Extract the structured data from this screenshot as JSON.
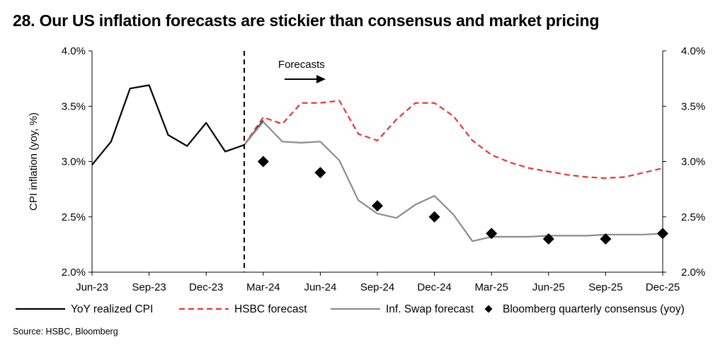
{
  "title": "28. Our US inflation forecasts are stickier than consensus and market pricing",
  "source": "Source: HSBC, Bloomberg",
  "chart_data": {
    "type": "line",
    "ylabel": "CPI inflation  (yoy, %)",
    "ylim": [
      2.0,
      4.0
    ],
    "y_ticks": [
      "2.0%",
      "2.5%",
      "3.0%",
      "3.5%",
      "4.0%"
    ],
    "y2_ticks": [
      "2.0%",
      "2.5%",
      "3.0%",
      "3.5%",
      "4.0%"
    ],
    "x_tick_labels": [
      "Jun-23",
      "Sep-23",
      "Dec-23",
      "Mar-24",
      "Jun-24",
      "Sep-24",
      "Dec-24",
      "Mar-25",
      "Jun-25",
      "Sep-25",
      "Dec-25"
    ],
    "x_start": "Jun-23",
    "x_end": "Dec-25",
    "forecast_start": "Feb-24",
    "annotation": "Forecasts",
    "grid": false,
    "legend_position": "bottom",
    "series": [
      {
        "name": "YoY realized CPI",
        "style": "solid",
        "color": "#000000",
        "x": [
          "Jun-23",
          "Jul-23",
          "Aug-23",
          "Sep-23",
          "Oct-23",
          "Nov-23",
          "Dec-23",
          "Jan-24",
          "Feb-24",
          "Mar-24"
        ],
        "values": [
          2.97,
          3.18,
          3.66,
          3.69,
          3.24,
          3.14,
          3.35,
          3.09,
          3.15,
          3.37
        ]
      },
      {
        "name": "HSBC forecast",
        "style": "dashed",
        "color": "#ee3333",
        "x": [
          "Feb-24",
          "Mar-24",
          "Apr-24",
          "May-24",
          "Jun-24",
          "Jul-24",
          "Aug-24",
          "Sep-24",
          "Oct-24",
          "Nov-24",
          "Dec-24",
          "Jan-25",
          "Feb-25",
          "Mar-25",
          "Apr-25",
          "May-25",
          "Jun-25",
          "Jul-25",
          "Aug-25",
          "Sep-25",
          "Oct-25",
          "Nov-25",
          "Dec-25"
        ],
        "values": [
          3.15,
          3.4,
          3.34,
          3.53,
          3.53,
          3.55,
          3.25,
          3.19,
          3.38,
          3.53,
          3.53,
          3.41,
          3.19,
          3.06,
          2.99,
          2.94,
          2.91,
          2.88,
          2.86,
          2.85,
          2.86,
          2.9,
          2.94
        ]
      },
      {
        "name": "Inf. Swap forecast",
        "style": "solid",
        "color": "#8c8c8c",
        "x": [
          "Feb-24",
          "Mar-24",
          "Apr-24",
          "May-24",
          "Jun-24",
          "Jul-24",
          "Aug-24",
          "Sep-24",
          "Oct-24",
          "Nov-24",
          "Dec-24",
          "Jan-25",
          "Feb-25",
          "Mar-25",
          "Apr-25",
          "May-25",
          "Jun-25",
          "Jul-25",
          "Aug-25",
          "Sep-25",
          "Oct-25",
          "Nov-25",
          "Dec-25"
        ],
        "values": [
          3.15,
          3.36,
          3.18,
          3.17,
          3.18,
          3.01,
          2.65,
          2.53,
          2.49,
          2.61,
          2.69,
          2.52,
          2.28,
          2.32,
          2.32,
          2.32,
          2.33,
          2.33,
          2.33,
          2.34,
          2.34,
          2.34,
          2.35
        ]
      },
      {
        "name": "Bloomberg quarterly consensus (yoy)",
        "style": "markers",
        "marker": "diamond",
        "color": "#000000",
        "x": [
          "Mar-24",
          "Jun-24",
          "Sep-24",
          "Dec-24",
          "Mar-25",
          "Jun-25",
          "Sep-25",
          "Dec-25"
        ],
        "values": [
          3.0,
          2.9,
          2.6,
          2.5,
          2.35,
          2.3,
          2.3,
          2.35
        ]
      }
    ]
  }
}
